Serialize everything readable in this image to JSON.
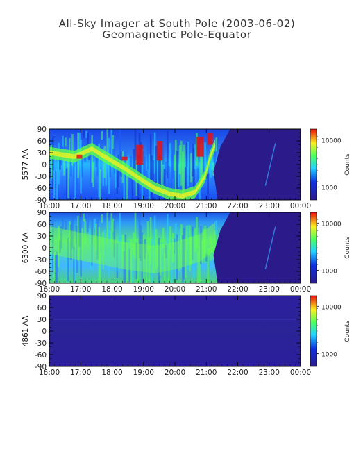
{
  "chart_data": {
    "type": "heatmap",
    "title": "All-Sky Imager at South Pole (2003-06-02)",
    "subtitle": "Geomagnetic Pole-Equator",
    "x_ticks": [
      "16:00",
      "17:00",
      "18:00",
      "19:00",
      "20:00",
      "21:00",
      "22:00",
      "23:00",
      "00:00"
    ],
    "y_ticks": [
      90,
      60,
      30,
      0,
      -30,
      -60,
      -90
    ],
    "ylim": [
      -90,
      90
    ],
    "colorbar": {
      "label": "Counts",
      "ticks": [
        "10000",
        "1000"
      ],
      "scale": "log"
    },
    "panels": [
      {
        "ylabel": "5577 AA",
        "intensity": "high",
        "description_keys": "green aurora band dips from ~30 to ~-60 between 18:00-21:00, saturated red arcs near 19:30-20:30 and 21:00-21:30, dark region after 21:40"
      },
      {
        "ylabel": "6300 AA",
        "intensity": "medium",
        "description_keys": "broad green/cyan emission 16:00-21:00, dark region after 21:40"
      },
      {
        "ylabel": "4861 AA",
        "intensity": "low",
        "description_keys": "uniformly dark blue/purple throughout"
      }
    ]
  },
  "colors": {
    "dark": "#2a1a8a",
    "mid": "#1a5cff",
    "cyan": "#22d4ff",
    "green": "#4cff60",
    "yellow": "#f8f020",
    "red": "#e81010",
    "title": "#333333"
  }
}
